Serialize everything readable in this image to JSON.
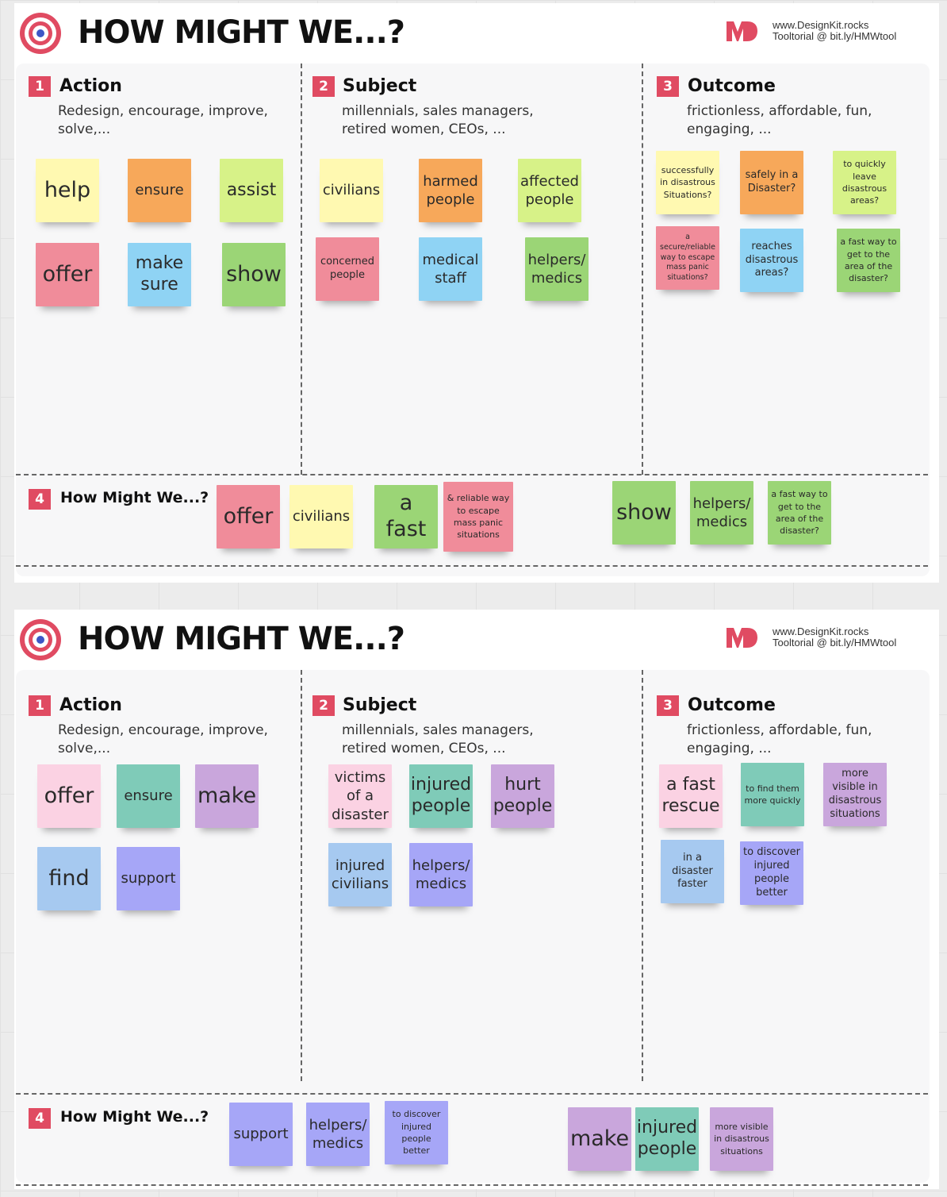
{
  "title": "HOW MIGHT WE...?",
  "brand": {
    "logo": "MD",
    "line1": "www.DesignKit.rocks",
    "line2": "Tooltorial @ bit.ly/HMWtool"
  },
  "sections": {
    "action": {
      "number": "1",
      "title": "Action",
      "desc": "Redesign, encourage, improve, solve,..."
    },
    "subject": {
      "number": "2",
      "title": "Subject",
      "desc": "millennials, sales managers, retired women, CEOs, ..."
    },
    "outcome": {
      "number": "3",
      "title": "Outcome",
      "desc": "frictionless, affordable, fun, engaging, ..."
    },
    "hmw": {
      "number": "4",
      "title": "How Might We...?"
    }
  },
  "boards": [
    {
      "action": [
        "help",
        "ensure",
        "assist",
        "offer",
        "make sure",
        "show"
      ],
      "subject": [
        "civilians",
        "harmed people",
        "affected people",
        "concerned people",
        "medical staff",
        "helpers/ medics"
      ],
      "outcome": [
        "successfully in disastrous Situations?",
        "safely in a Disaster?",
        "to quickly leave disastrous areas?",
        "a secure/reliable way to escape mass panic situations?",
        "reaches disastrous areas?",
        "a fast way to get to the area of the disaster?"
      ],
      "hmw": [
        "offer",
        "civilians",
        "a fast",
        "& reliable way to escape mass panic situations",
        "show",
        "helpers/ medics",
        "a fast way to get to the area of the disaster?"
      ]
    },
    {
      "action": [
        "offer",
        "ensure",
        "make",
        "find",
        "support"
      ],
      "subject": [
        "victims of a disaster",
        "injured people",
        "hurt people",
        "injured civilians",
        "helpers/ medics"
      ],
      "outcome": [
        "a fast rescue",
        "to find them more quickly",
        "more visible in disastrous situations",
        "in a disaster faster",
        "to discover injured people better"
      ],
      "hmw": [
        "support",
        "helpers/ medics",
        "to discover injured people better",
        "make",
        "injured people",
        "more visible in disastrous situations"
      ]
    }
  ],
  "colors": {
    "yellow": "#fff9b1",
    "orange": "#f7a85a",
    "lime": "#d7f288",
    "pink": "#f08c9a",
    "sky": "#8fd3f4",
    "green": "#9bd576",
    "light_pink": "#fbd2e3",
    "teal": "#7fcbb8",
    "purple": "#c9a6dc",
    "light_blue": "#a6c9f0",
    "violet": "#a6a6f7",
    "accent_red": "#e04b62"
  }
}
